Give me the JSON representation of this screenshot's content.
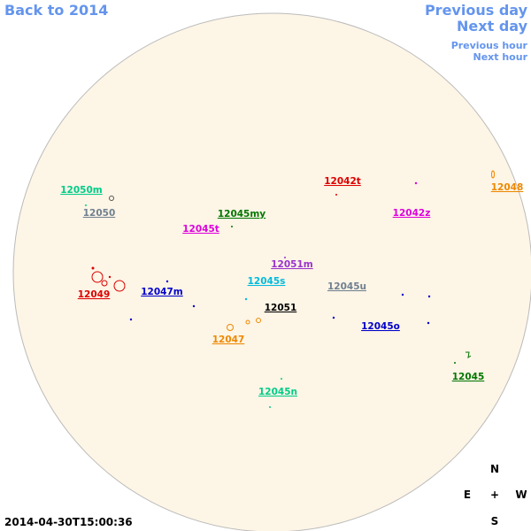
{
  "nav": {
    "back": "Back to 2014",
    "previous_day": "Previous day",
    "next_day": "Next day",
    "previous_hour": "Previous hour",
    "next_hour": "Next hour"
  },
  "timestamp": "2014-04-30T15:00:36",
  "compass": {
    "north": "N",
    "east": "E",
    "center": "+",
    "west": "W",
    "south": "S"
  },
  "regions": [
    {
      "label": "12050m",
      "color": "#00cc88"
    },
    {
      "label": "12050",
      "color": "#708090"
    },
    {
      "label": "12045my",
      "color": "#007700"
    },
    {
      "label": "12045t",
      "color": "#dd00dd"
    },
    {
      "label": "12042t",
      "color": "#dd0000"
    },
    {
      "label": "12042z",
      "color": "#dd00dd"
    },
    {
      "label": "12048",
      "color": "#ee8800"
    },
    {
      "label": "12051m",
      "color": "#9933cc"
    },
    {
      "label": "12045s",
      "color": "#00bbdd"
    },
    {
      "label": "12045u",
      "color": "#708090"
    },
    {
      "label": "12049",
      "color": "#dd0000"
    },
    {
      "label": "12047m",
      "color": "#0000cc"
    },
    {
      "label": "12051",
      "color": "#000000"
    },
    {
      "label": "12045o",
      "color": "#0000cc"
    },
    {
      "label": "12047",
      "color": "#ee8800"
    },
    {
      "label": "12045n",
      "color": "#00cc88"
    },
    {
      "label": "12045",
      "color": "#007700"
    }
  ]
}
